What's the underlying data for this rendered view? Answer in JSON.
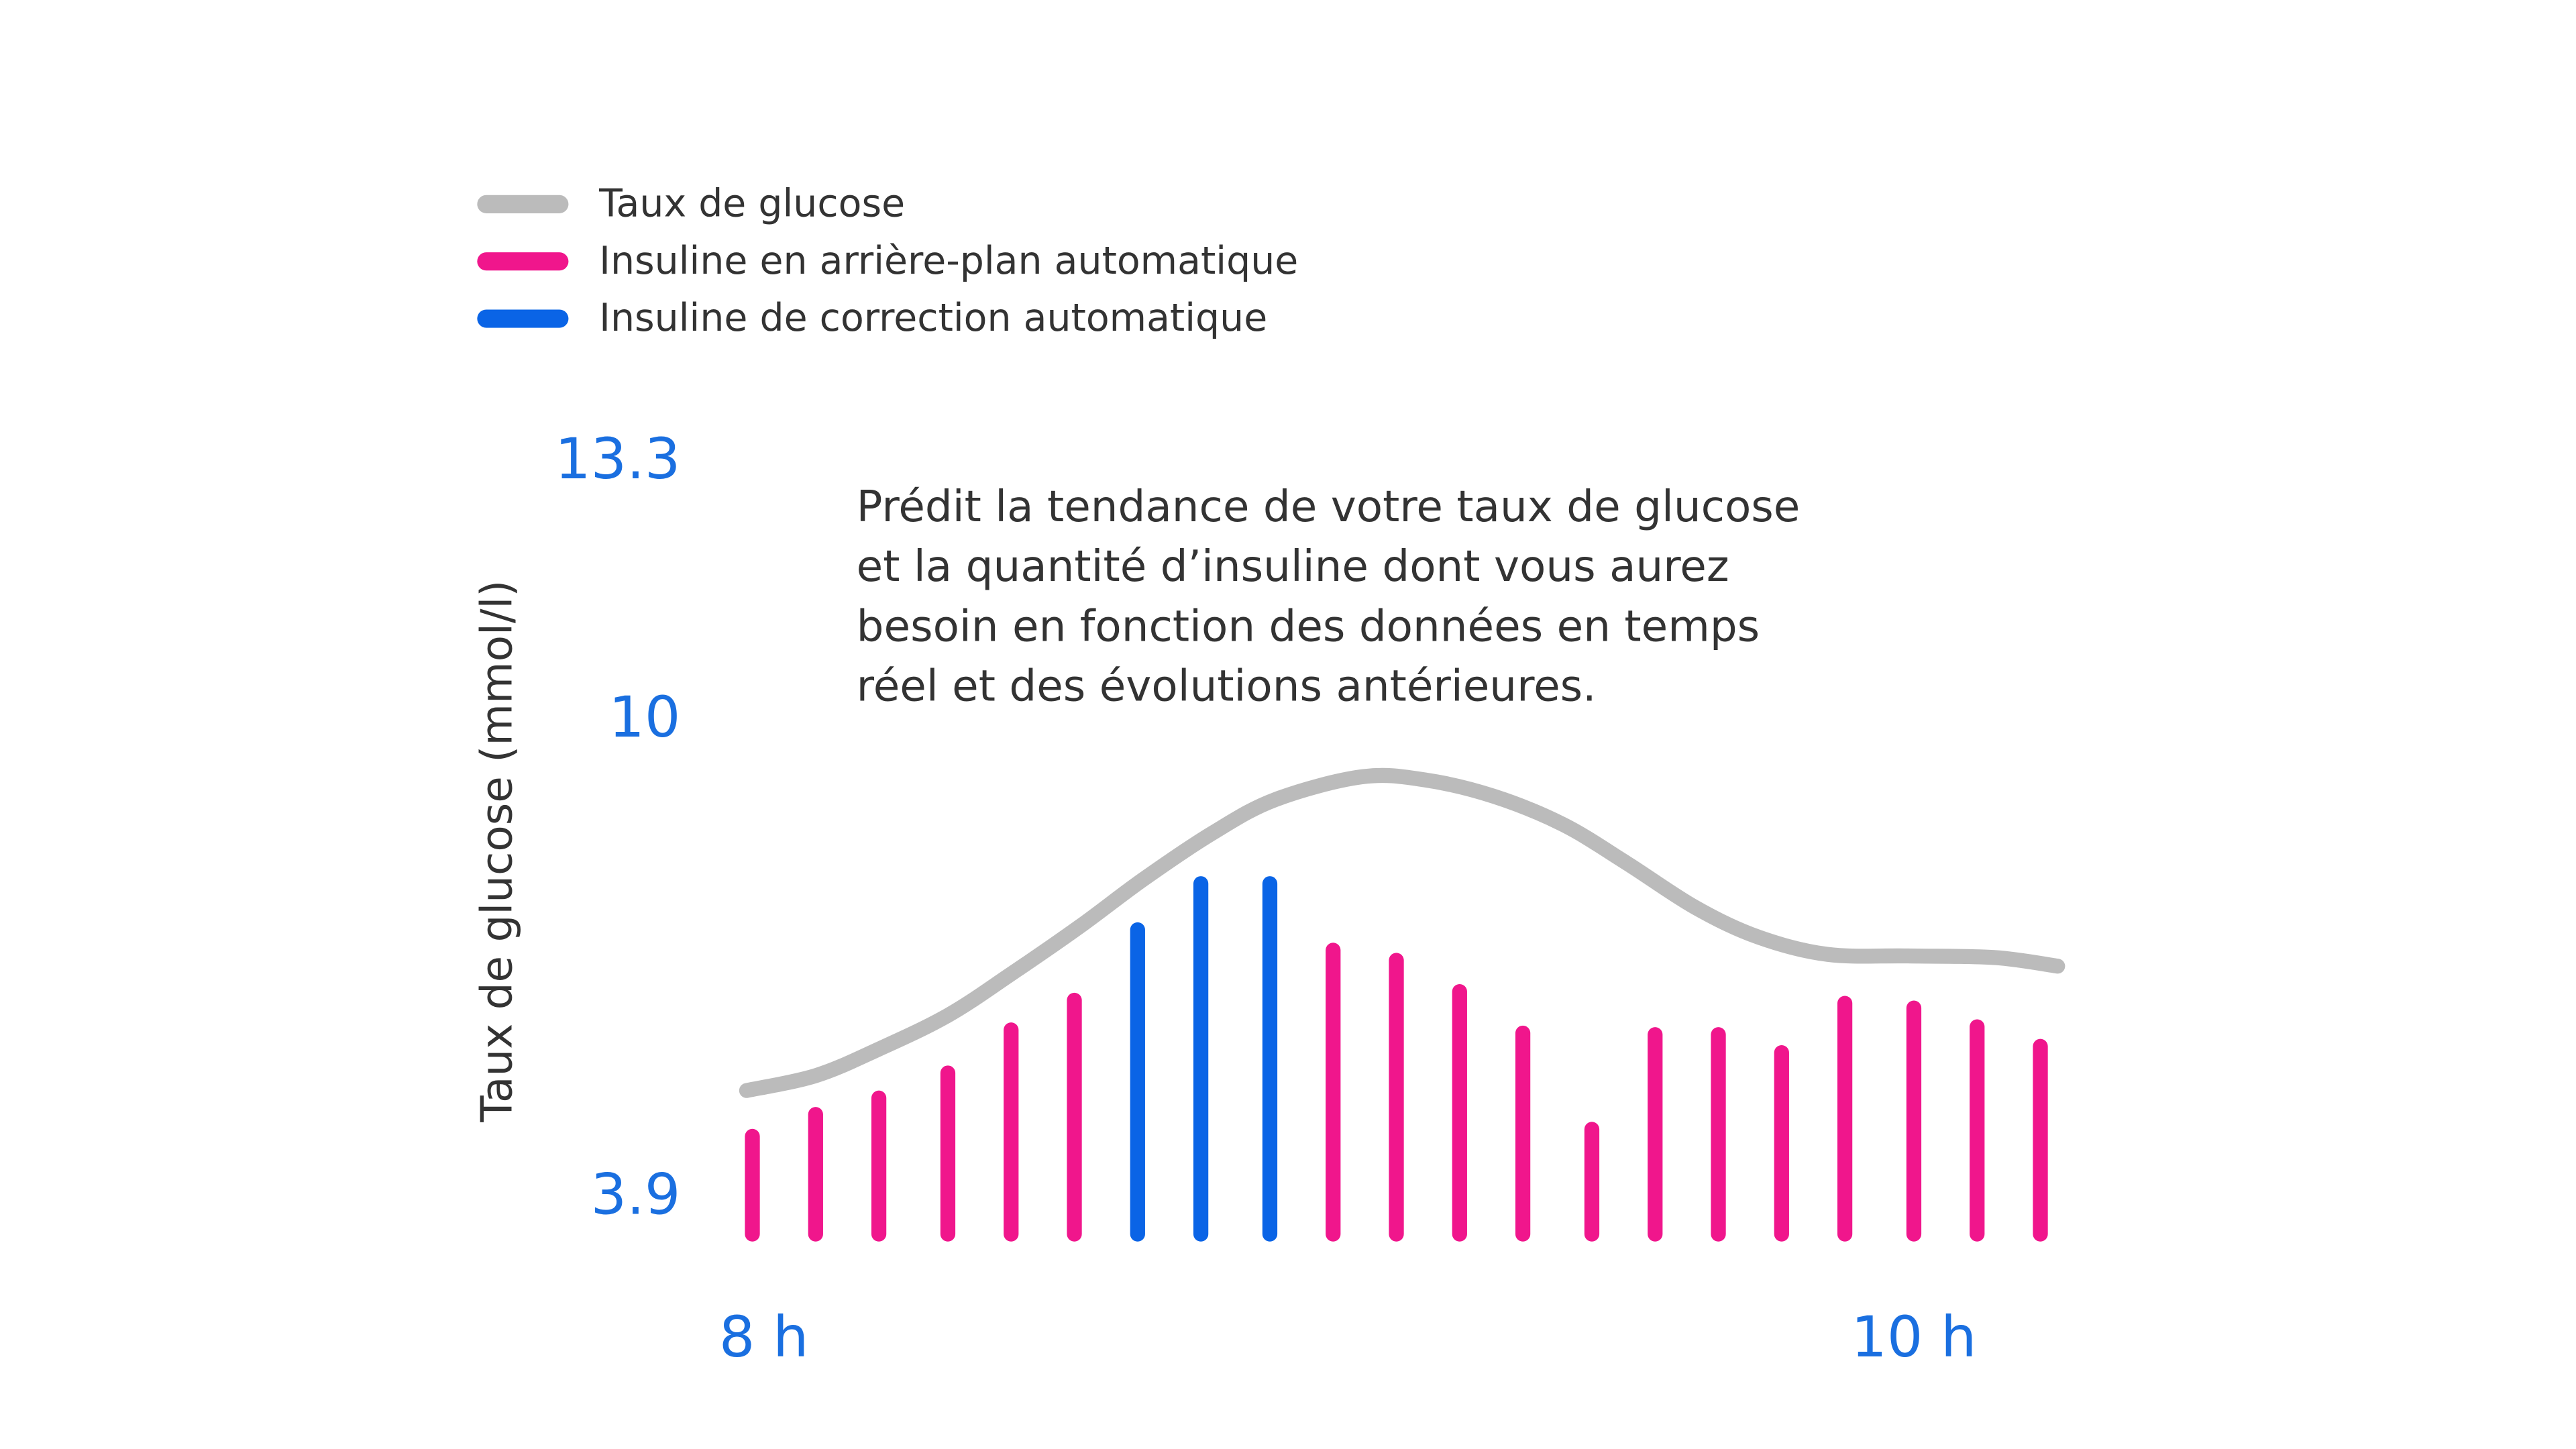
{
  "chart_data": {
    "type": "bar-line",
    "ylabel": "Taux de glucose (mmol/l)",
    "annotation": [
      "Prédit la tendance de votre taux de glucose",
      "et la quantité d’insuline dont vous aurez",
      "besoin en fonction des données en temps",
      "réel et des évolutions antérieures."
    ],
    "xlim": [
      7.5,
      11
    ],
    "xticks": [
      {
        "value": 8,
        "label": "8 h"
      },
      {
        "value": 10,
        "label": "10 h"
      }
    ],
    "ylim": [
      3.35,
      13.3
    ],
    "yticks": [
      3.9,
      10,
      13.3
    ],
    "line": {
      "name": "Taux de glucose",
      "color": "#bbbbbb",
      "x": [
        7.97,
        8.09,
        8.2,
        8.32,
        8.43,
        8.55,
        8.66,
        8.78,
        8.89,
        9.04,
        9.15,
        9.27,
        9.39,
        9.5,
        9.62,
        9.73,
        9.85,
        9.99,
        10.14,
        10.25
      ],
      "values": [
        5.28,
        5.47,
        5.81,
        6.24,
        6.77,
        7.38,
        7.98,
        8.57,
        9.0,
        9.29,
        9.25,
        9.04,
        8.68,
        8.19,
        7.62,
        7.24,
        7.02,
        7.0,
        6.98,
        6.87
      ]
    },
    "x": [
      7.98,
      8.09,
      8.2,
      8.32,
      8.43,
      8.54,
      8.65,
      8.76,
      8.88,
      8.99,
      9.1,
      9.21,
      9.32,
      9.44,
      9.55,
      9.66,
      9.77,
      9.88,
      10.0,
      10.11,
      10.22
    ],
    "series": [
      {
        "name": "Insuline en arrière-plan automatique",
        "color": "#f0168c",
        "values": [
          4.79,
          5.07,
          5.28,
          5.6,
          6.15,
          6.53,
          null,
          null,
          null,
          7.17,
          7.04,
          6.64,
          6.11,
          4.88,
          6.09,
          6.09,
          5.86,
          6.49,
          6.43,
          6.19,
          5.94
        ]
      },
      {
        "name": "Insuline de correction automatique",
        "color": "#0a64e6",
        "values": [
          null,
          null,
          null,
          null,
          null,
          null,
          7.43,
          8.02,
          8.02,
          null,
          null,
          null,
          null,
          null,
          null,
          null,
          null,
          null,
          null,
          null,
          null
        ]
      }
    ]
  }
}
